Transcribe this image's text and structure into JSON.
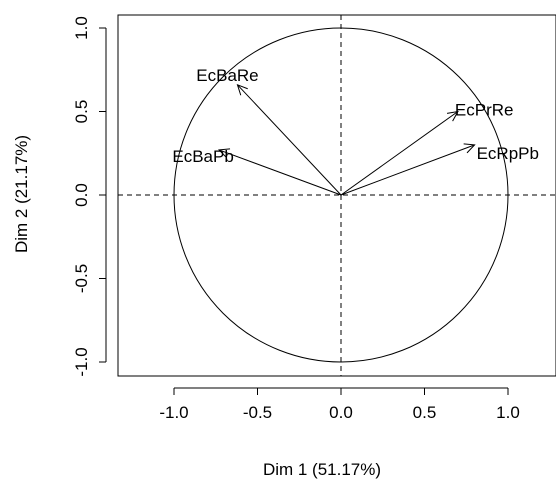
{
  "chart_data": {
    "type": "scatter",
    "variant": "pca-correlation-circle",
    "title": "",
    "xlabel": "Dim 1 (51.17%)",
    "ylabel": "Dim 2 (21.17%)",
    "xlim": [
      -1.3,
      1.3
    ],
    "ylim": [
      -1.1,
      1.1
    ],
    "xticks": [
      -1.0,
      -0.5,
      0.0,
      0.5,
      1.0
    ],
    "xtick_labels": [
      "-1.0",
      "-0.5",
      "0.0",
      "0.5",
      "1.0"
    ],
    "yticks": [
      -1.0,
      -0.5,
      0.0,
      0.5,
      1.0
    ],
    "ytick_labels": [
      "-1.0",
      "-0.5",
      "0.0",
      "0.5",
      "1.0"
    ],
    "grid": false,
    "unit_circle": true,
    "reference_lines": {
      "x": 0,
      "y": 0,
      "style": "dashed"
    },
    "vectors": [
      {
        "name": "EcBaRe",
        "x": -0.62,
        "y": 0.66
      },
      {
        "name": "EcBaPb",
        "x": -0.73,
        "y": 0.27
      },
      {
        "name": "EcPrRe",
        "x": 0.7,
        "y": 0.5
      },
      {
        "name": "EcRpPb",
        "x": 0.8,
        "y": 0.3
      }
    ]
  }
}
